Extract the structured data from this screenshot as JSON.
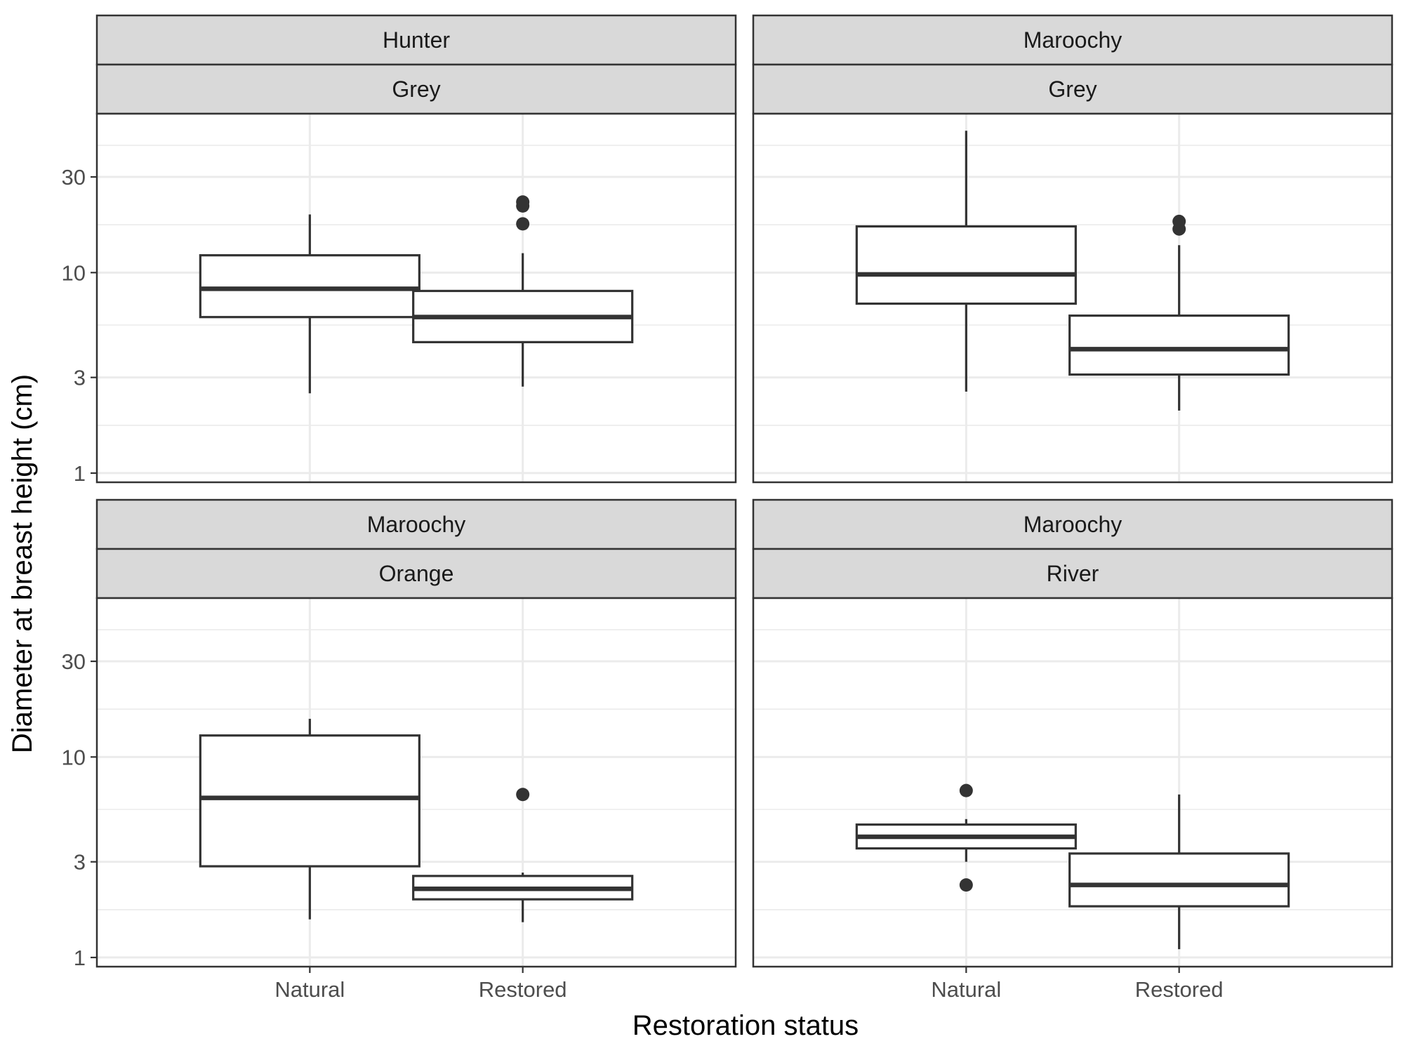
{
  "chart_data": {
    "type": "boxplot",
    "xlabel": "Restoration status",
    "ylabel": "Diameter at breast height (cm)",
    "y_scale": "log10",
    "ylim": [
      0.9,
      62
    ],
    "y_ticks": [
      1,
      3,
      10,
      30
    ],
    "y_tick_labels": [
      "1",
      "3",
      "10",
      "30"
    ],
    "categories": [
      "Natural",
      "Restored"
    ],
    "grid": true,
    "facets": [
      {
        "strip_top": "Hunter",
        "strip_bottom": "Grey",
        "boxes": [
          {
            "category": "Natural",
            "whisker_low": 2.5,
            "q1": 6.0,
            "median": 8.3,
            "q3": 12.2,
            "whisker_high": 19.5,
            "outliers": []
          },
          {
            "category": "Restored",
            "whisker_low": 2.7,
            "q1": 4.5,
            "median": 6.0,
            "q3": 8.1,
            "whisker_high": 12.5,
            "outliers": [
              17.5,
              21.5,
              22.5
            ]
          }
        ]
      },
      {
        "strip_top": "Maroochy",
        "strip_bottom": "Grey",
        "boxes": [
          {
            "category": "Natural",
            "whisker_low": 2.55,
            "q1": 7.0,
            "median": 9.8,
            "q3": 17.0,
            "whisker_high": 51.0,
            "outliers": []
          },
          {
            "category": "Restored",
            "whisker_low": 2.05,
            "q1": 3.1,
            "median": 4.15,
            "q3": 6.1,
            "whisker_high": 13.7,
            "outliers": [
              16.5,
              18.0
            ]
          }
        ]
      },
      {
        "strip_top": "Maroochy",
        "strip_bottom": "Orange",
        "boxes": [
          {
            "category": "Natural",
            "whisker_low": 1.55,
            "q1": 2.85,
            "median": 6.25,
            "q3": 12.8,
            "whisker_high": 15.5,
            "outliers": []
          },
          {
            "category": "Restored",
            "whisker_low": 1.5,
            "q1": 1.95,
            "median": 2.2,
            "q3": 2.55,
            "whisker_high": 2.65,
            "outliers": [
              6.5
            ]
          }
        ]
      },
      {
        "strip_top": "Maroochy",
        "strip_bottom": "River",
        "boxes": [
          {
            "category": "Natural",
            "whisker_low": 3.0,
            "q1": 3.5,
            "median": 4.0,
            "q3": 4.6,
            "whisker_high": 4.9,
            "outliers": [
              6.8,
              2.3
            ]
          },
          {
            "category": "Restored",
            "whisker_low": 1.1,
            "q1": 1.8,
            "median": 2.3,
            "q3": 3.3,
            "whisker_high": 6.5,
            "outliers": []
          }
        ]
      }
    ]
  }
}
